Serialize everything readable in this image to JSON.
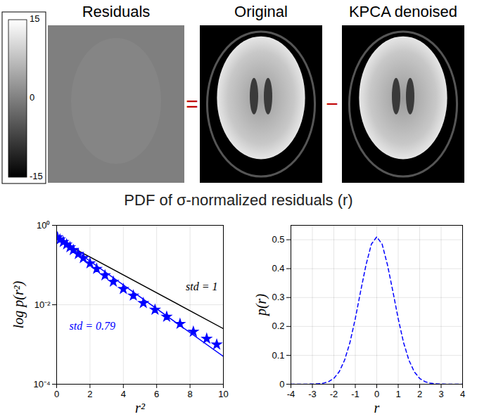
{
  "images": {
    "panels": [
      {
        "title": "Residuals"
      },
      {
        "title": "Original"
      },
      {
        "title": "KPCA denoised"
      }
    ],
    "operators": [
      "=",
      "−"
    ],
    "colorbar": {
      "range": [
        -15,
        15
      ],
      "ticks": [
        15,
        0,
        -15
      ]
    }
  },
  "title": "PDF of σ-normalized residuals (r)",
  "chart_data": [
    {
      "type": "line",
      "log": "y",
      "grid": true,
      "xlabel": "r²",
      "ylabel": "log p(r²)",
      "xlim": [
        0,
        10
      ],
      "xticks": [
        0,
        2,
        4,
        6,
        8,
        10
      ],
      "ylim": [
        0.0001,
        1
      ],
      "yticks": [
        {
          "value": 0.0001,
          "label": "10⁻⁴"
        },
        {
          "value": 0.01,
          "label": "10⁻²"
        },
        {
          "value": 1,
          "label": "10⁰"
        }
      ],
      "series": [
        {
          "name": "std = 1",
          "type": "line",
          "color": "#000000",
          "x": [
            0,
            10
          ],
          "values": [
            0.45,
            0.0025
          ]
        },
        {
          "name": "std = 0.79",
          "type": "line",
          "color": "#0000ff",
          "x": [
            0,
            10
          ],
          "values": [
            0.5,
            0.0005
          ]
        },
        {
          "type": "scatter",
          "marker": "star",
          "color": "#0000ff",
          "x": [
            0.05,
            0.2,
            0.4,
            0.6,
            0.8,
            1.0,
            1.3,
            1.6,
            2.0,
            2.4,
            2.9,
            3.4,
            4.0,
            4.6,
            5.2,
            5.9,
            6.6,
            7.4,
            8.2,
            9.0,
            9.6
          ],
          "values": [
            0.5,
            0.44,
            0.38,
            0.33,
            0.28,
            0.24,
            0.19,
            0.15,
            0.11,
            0.08,
            0.055,
            0.038,
            0.025,
            0.017,
            0.011,
            0.0075,
            0.005,
            0.0033,
            0.0021,
            0.0014,
            0.001
          ]
        }
      ]
    },
    {
      "type": "line",
      "grid": true,
      "xlabel": "r",
      "ylabel": "p(r)",
      "xlim": [
        -4,
        4
      ],
      "xticks": [
        -4,
        -3,
        -2,
        -1,
        0,
        1,
        2,
        3,
        4
      ],
      "ylim": [
        0,
        0.55
      ],
      "yticks": [
        0,
        0.1,
        0.2,
        0.3,
        0.4,
        0.5
      ],
      "series": [
        {
          "type": "line",
          "color": "#0000ff",
          "line_style": "dashed",
          "x": [
            -4,
            -3.5,
            -3,
            -2.75,
            -2.5,
            -2.25,
            -2,
            -1.75,
            -1.5,
            -1.25,
            -1,
            -0.75,
            -0.5,
            -0.25,
            0,
            0.25,
            0.5,
            0.75,
            1,
            1.25,
            1.5,
            1.75,
            2,
            2.25,
            2.5,
            2.75,
            3,
            3.5,
            4
          ],
          "values": [
            0,
            0,
            0.0004,
            0.0012,
            0.0034,
            0.0087,
            0.02,
            0.043,
            0.083,
            0.144,
            0.227,
            0.322,
            0.413,
            0.485,
            0.51,
            0.485,
            0.413,
            0.322,
            0.227,
            0.144,
            0.083,
            0.043,
            0.02,
            0.0087,
            0.0034,
            0.0012,
            0.0004,
            0,
            0
          ]
        }
      ]
    }
  ]
}
